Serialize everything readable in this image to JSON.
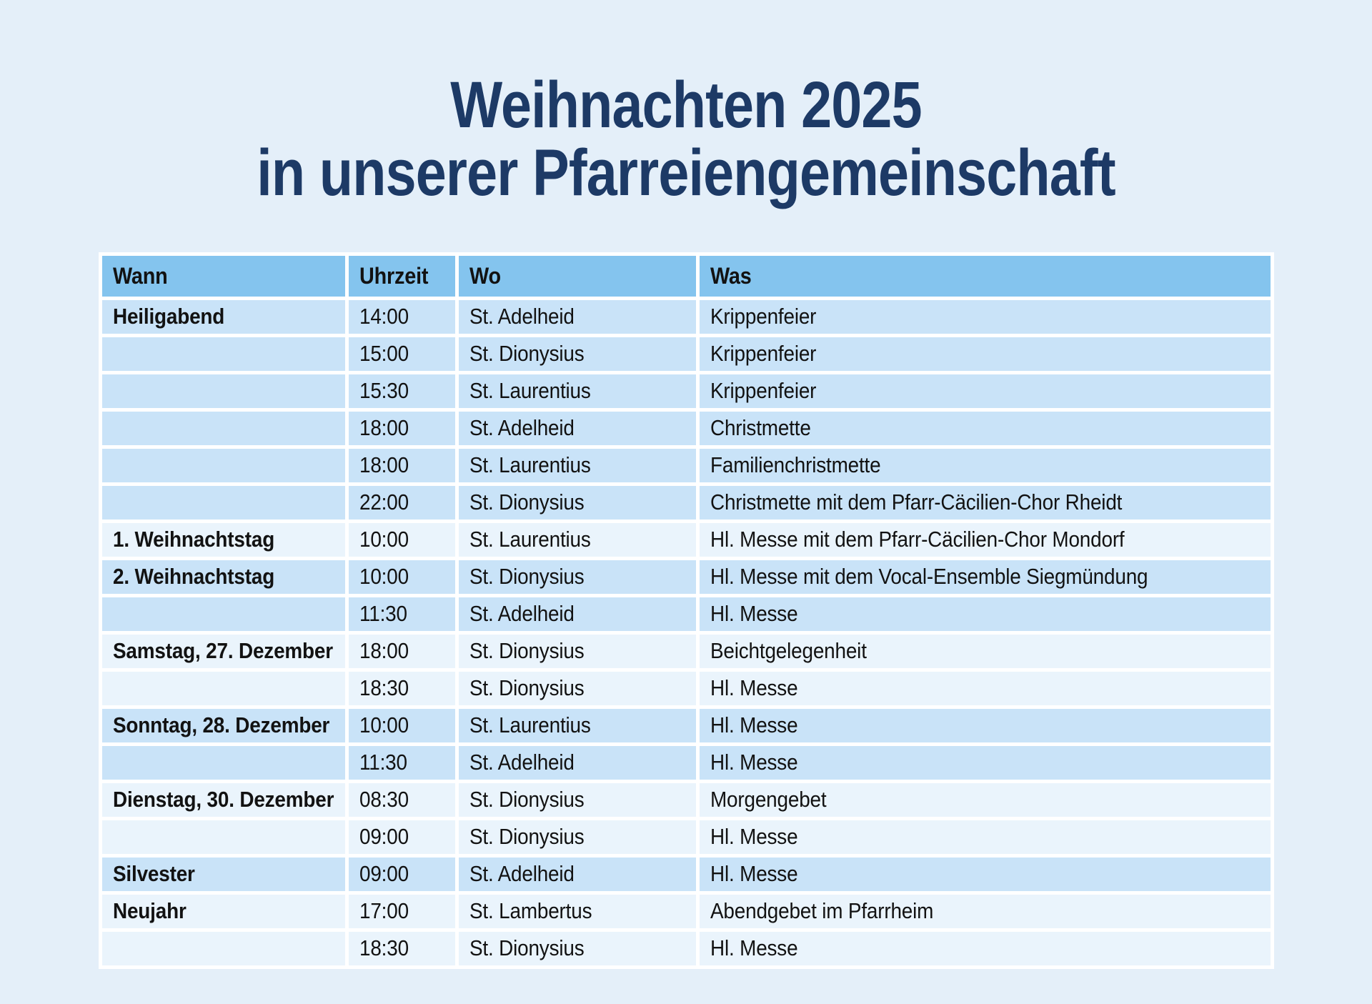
{
  "title": {
    "line1": "Weihnachten 2025",
    "line2": "in unserer Pfarreiengemeinschaft"
  },
  "colors": {
    "background": "#E4EFF9",
    "title": "#1D3A66",
    "header_bg": "#84C4EE",
    "row_dark": "#C9E3F8",
    "row_light": "#EAF4FC",
    "separator": "#FFFFFF",
    "text": "#121212"
  },
  "table": {
    "columns": [
      "Wann",
      "Uhrzeit",
      "Wo",
      "Was"
    ],
    "rows": [
      {
        "wann": "Heiligabend",
        "uhrzeit": "14:00",
        "wo": "St. Adelheid",
        "was": "Krippenfeier",
        "shade": "a"
      },
      {
        "wann": "",
        "uhrzeit": "15:00",
        "wo": "St. Dionysius",
        "was": "Krippenfeier",
        "shade": "a"
      },
      {
        "wann": "",
        "uhrzeit": "15:30",
        "wo": "St. Laurentius",
        "was": "Krippenfeier",
        "shade": "a"
      },
      {
        "wann": "",
        "uhrzeit": "18:00",
        "wo": "St. Adelheid",
        "was": "Christmette",
        "shade": "a"
      },
      {
        "wann": "",
        "uhrzeit": "18:00",
        "wo": "St. Laurentius",
        "was": "Familienchristmette",
        "shade": "a"
      },
      {
        "wann": "",
        "uhrzeit": "22:00",
        "wo": "St. Dionysius",
        "was": "Christmette mit dem Pfarr-Cäcilien-Chor Rheidt",
        "shade": "a"
      },
      {
        "wann": "1. Weihnachtstag",
        "uhrzeit": "10:00",
        "wo": "St. Laurentius",
        "was": "Hl. Messe mit dem Pfarr-Cäcilien-Chor Mondorf",
        "shade": "b"
      },
      {
        "wann": "2. Weihnachtstag",
        "uhrzeit": "10:00",
        "wo": "St. Dionysius",
        "was": "Hl. Messe mit dem Vocal-Ensemble Siegmündung",
        "shade": "a"
      },
      {
        "wann": "",
        "uhrzeit": "11:30",
        "wo": "St. Adelheid",
        "was": "Hl. Messe",
        "shade": "a"
      },
      {
        "wann": "Samstag, 27. Dezember",
        "uhrzeit": "18:00",
        "wo": "St. Dionysius",
        "was": "Beichtgelegenheit",
        "shade": "b"
      },
      {
        "wann": "",
        "uhrzeit": "18:30",
        "wo": "St. Dionysius",
        "was": "Hl. Messe",
        "shade": "b"
      },
      {
        "wann": "Sonntag, 28. Dezember",
        "uhrzeit": "10:00",
        "wo": "St. Laurentius",
        "was": "Hl. Messe",
        "shade": "a"
      },
      {
        "wann": "",
        "uhrzeit": "11:30",
        "wo": "St. Adelheid",
        "was": "Hl. Messe",
        "shade": "a"
      },
      {
        "wann": "Dienstag, 30. Dezember",
        "uhrzeit": "08:30",
        "wo": "St. Dionysius",
        "was": "Morgengebet",
        "shade": "b"
      },
      {
        "wann": "",
        "uhrzeit": "09:00",
        "wo": "St. Dionysius",
        "was": "Hl. Messe",
        "shade": "b"
      },
      {
        "wann": "Silvester",
        "uhrzeit": "09:00",
        "wo": "St. Adelheid",
        "was": "Hl. Messe",
        "shade": "a"
      },
      {
        "wann": "Neujahr",
        "uhrzeit": "17:00",
        "wo": "St. Lambertus",
        "was": "Abendgebet im Pfarrheim",
        "shade": "b"
      },
      {
        "wann": "",
        "uhrzeit": "18:30",
        "wo": "St. Dionysius",
        "was": "Hl. Messe",
        "shade": "b"
      }
    ]
  }
}
